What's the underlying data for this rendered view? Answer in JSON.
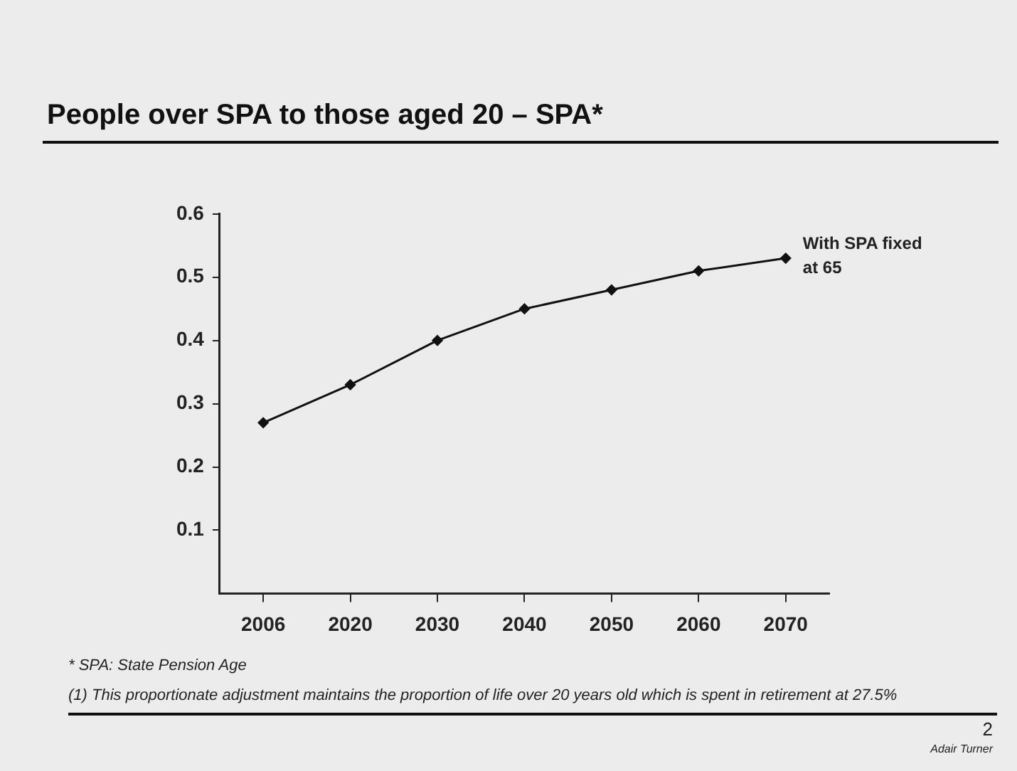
{
  "chart_data": {
    "type": "line",
    "title": "People over SPA to those aged 20 – SPA*",
    "categories": [
      "2006",
      "2020",
      "2030",
      "2040",
      "2050",
      "2060",
      "2070"
    ],
    "series": [
      {
        "name": "With SPA fixed at 65",
        "color": "#111111",
        "values": [
          0.27,
          0.33,
          0.4,
          0.45,
          0.48,
          0.51,
          0.53
        ]
      }
    ],
    "ylim": [
      0,
      0.6
    ],
    "yticks": [
      0.1,
      0.2,
      0.3,
      0.4,
      0.5,
      0.6
    ],
    "grid": false,
    "legend": false,
    "marker": "diamond",
    "line_style": "solid",
    "annotations": [
      "* SPA: State Pension Age",
      "(1) This proportionate adjustment maintains the proportion of life over 20 years old which is spent in retirement at 27.5%",
      "2",
      "Adair Turner"
    ]
  }
}
